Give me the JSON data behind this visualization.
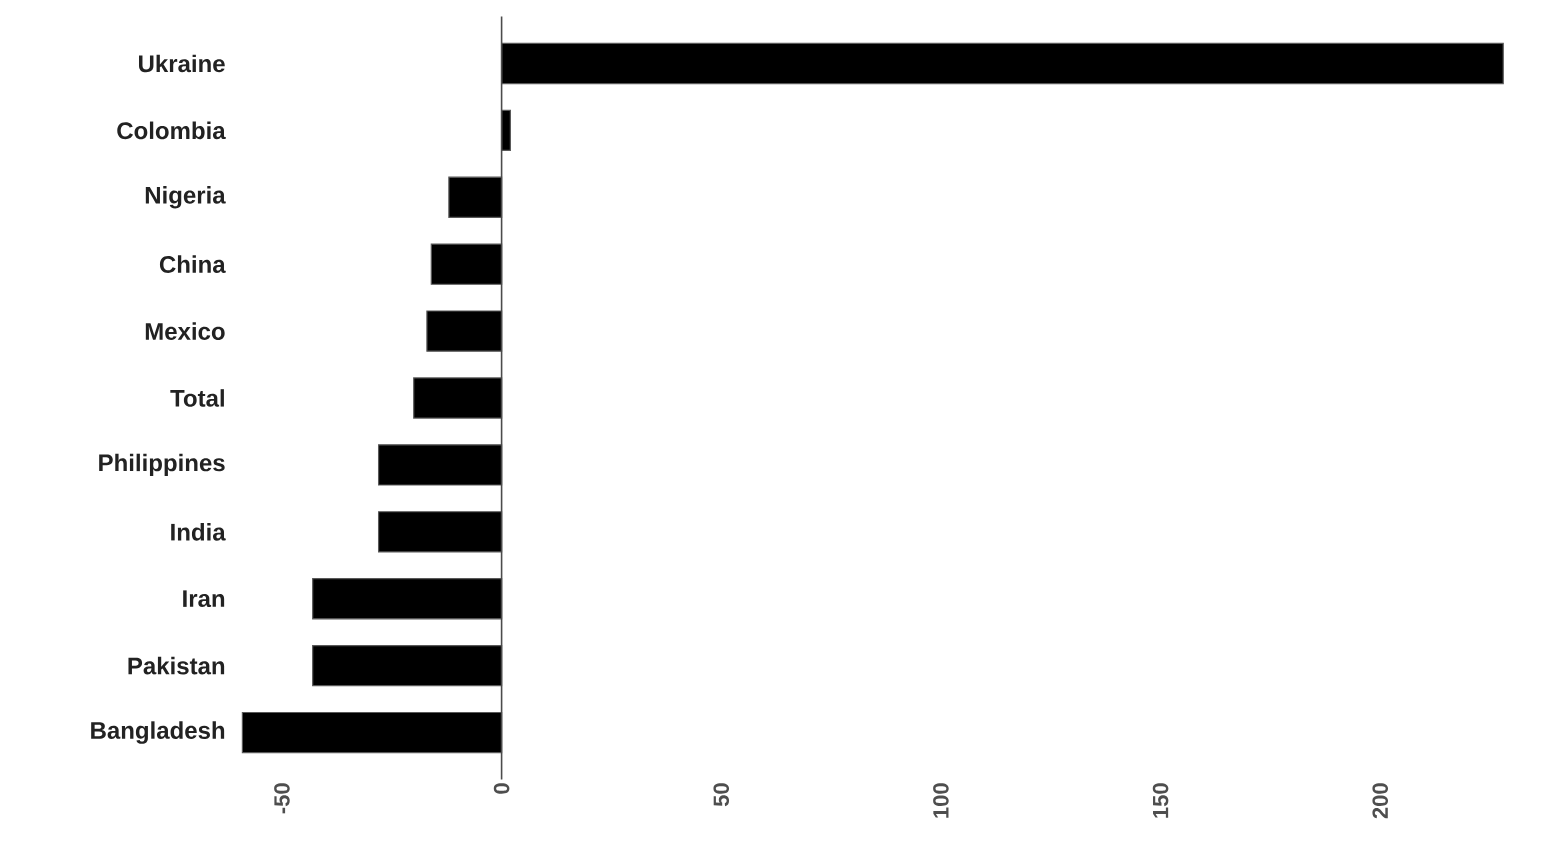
{
  "chart_data": {
    "type": "bar",
    "orientation": "horizontal",
    "categories": [
      "Ukraine",
      "Colombia",
      "Nigeria",
      "China",
      "Mexico",
      "Total",
      "Philippines",
      "India",
      "Iran",
      "Pakistan",
      "Bangladesh"
    ],
    "values": [
      228,
      2,
      -12,
      -16,
      -17,
      -20,
      -28,
      -28,
      -43,
      -43,
      -59
    ],
    "color": "#000000",
    "xlim": [
      -60,
      230
    ],
    "xticks": [
      -50,
      0,
      50,
      100,
      150,
      200
    ]
  }
}
